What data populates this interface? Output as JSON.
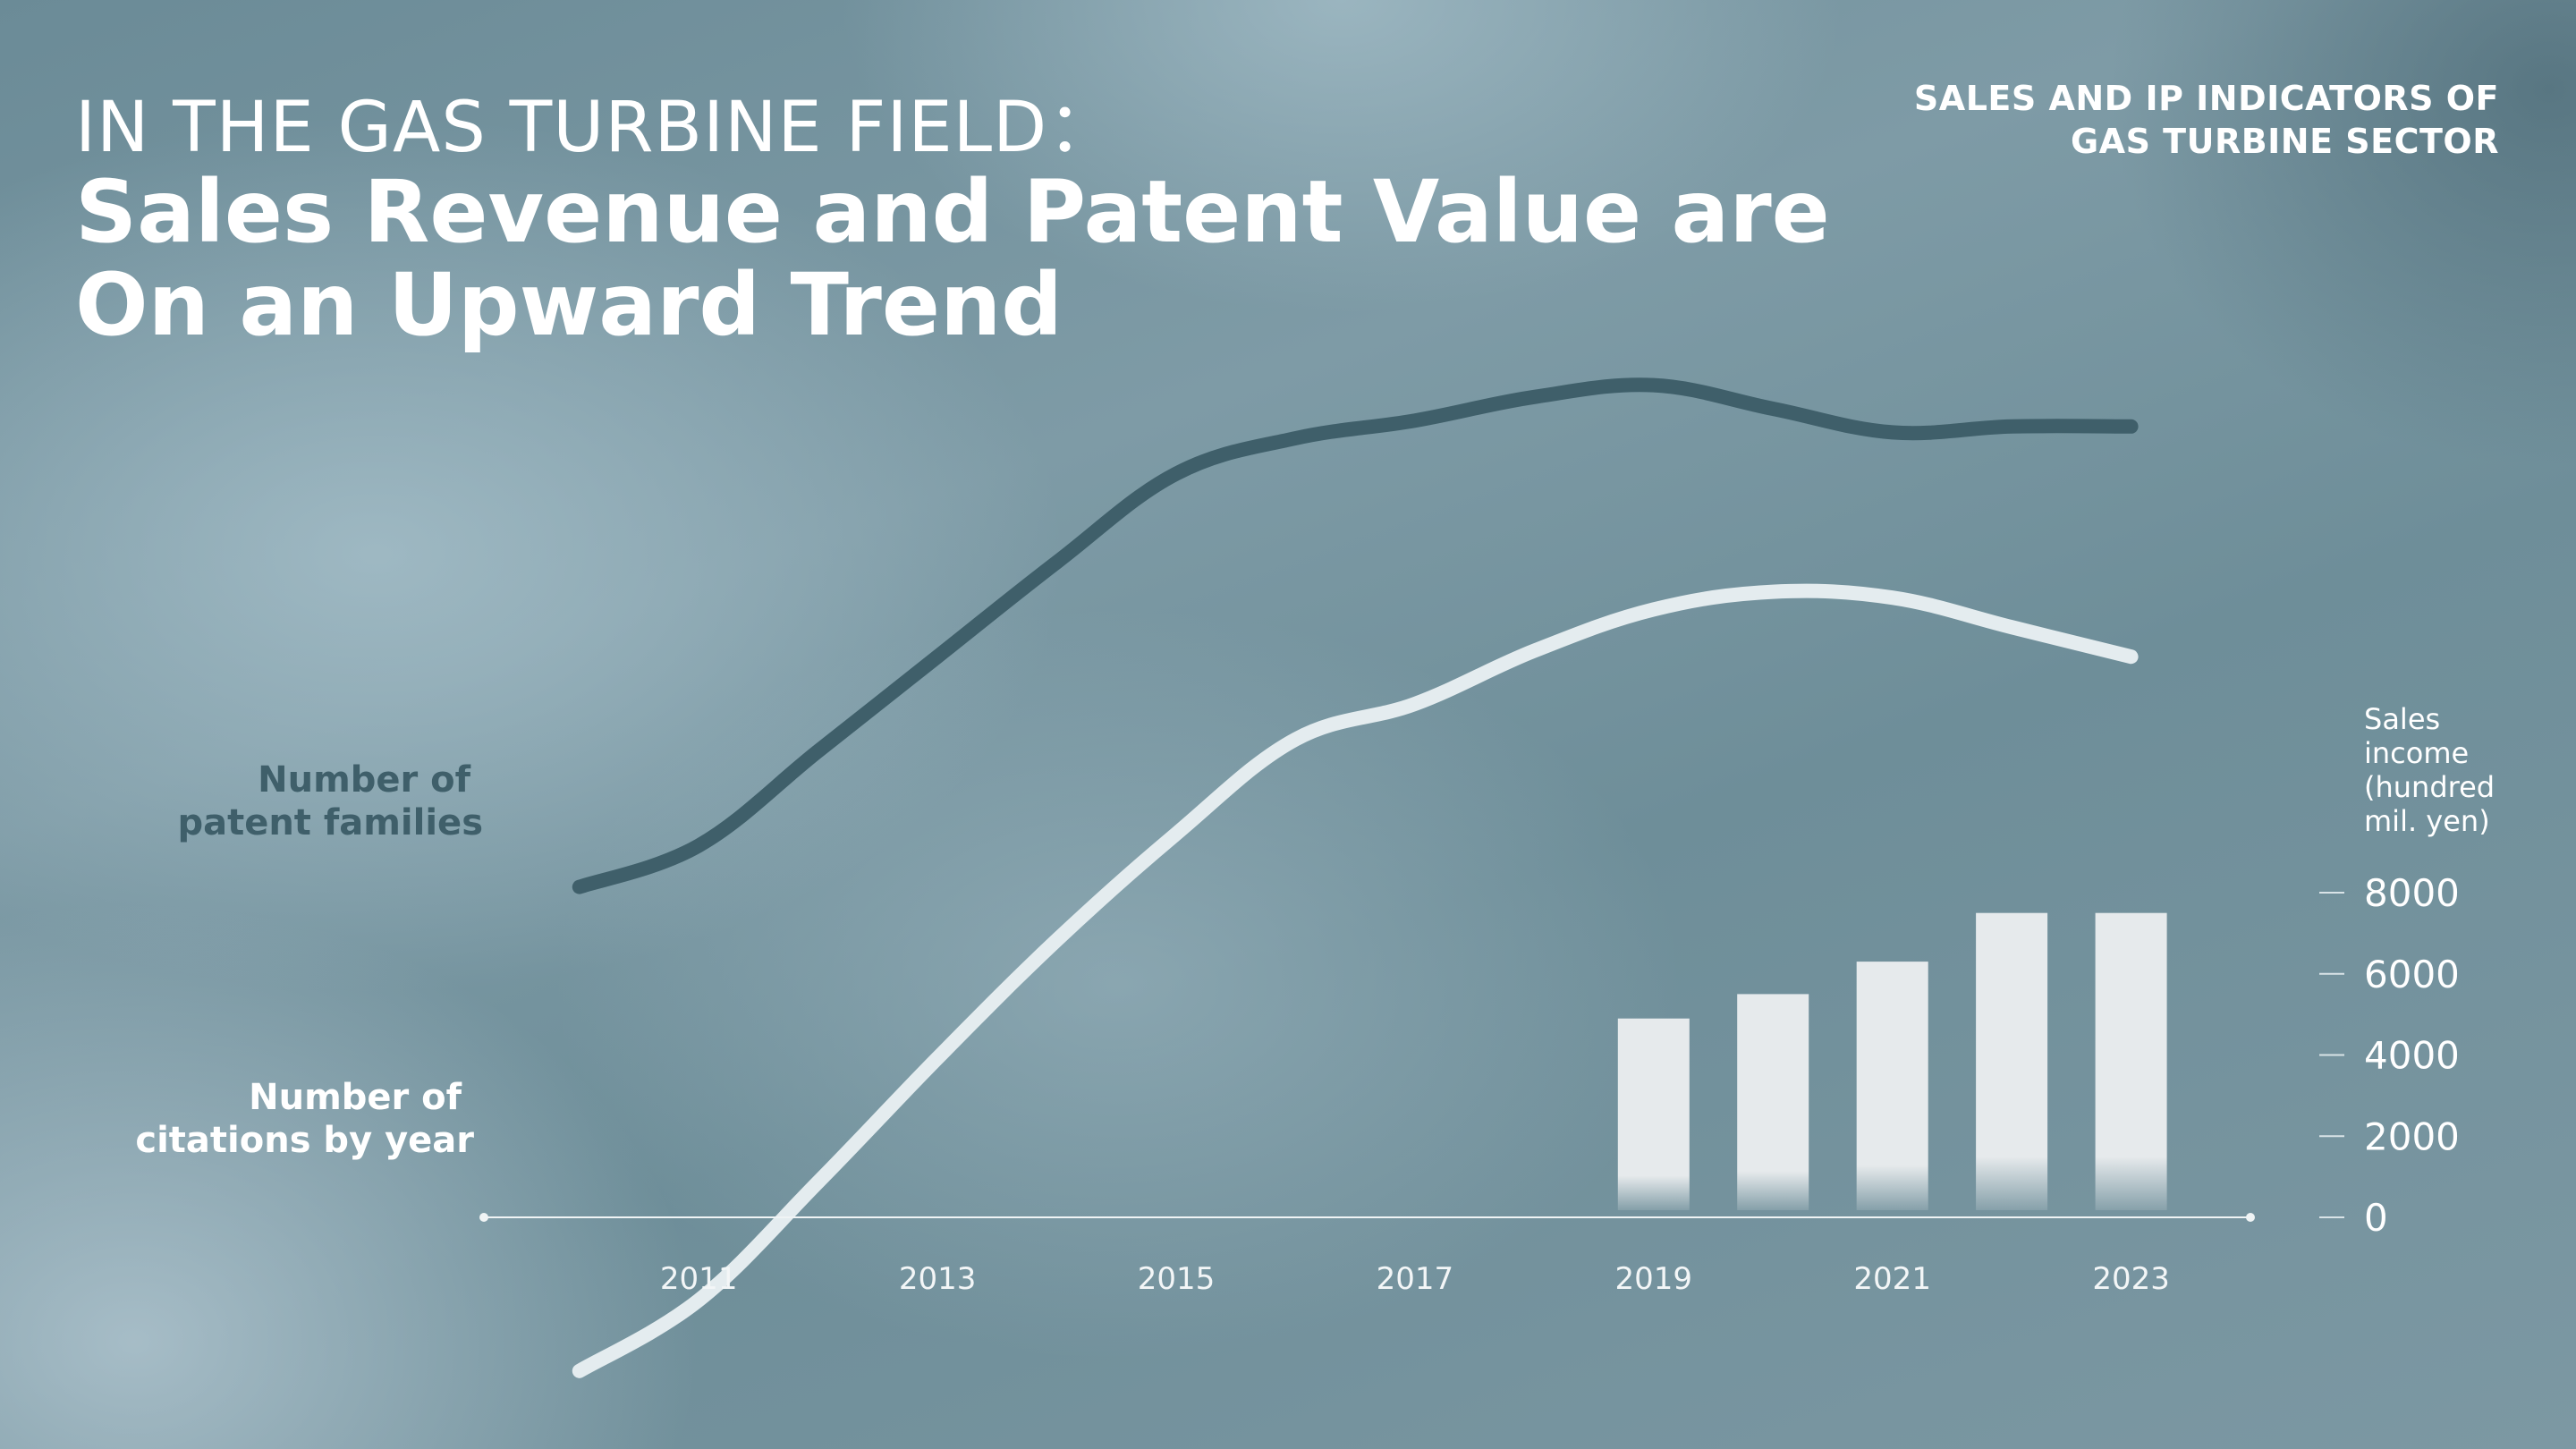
{
  "header": {
    "eyebrow": "IN THE GAS TURBINE FIELD：",
    "headline_line1": "Sales Revenue and Patent Value are",
    "headline_line2": "On an Upward Trend",
    "corner_line1": "SALES AND IP INDICATORS OF",
    "corner_line2": "GAS TURBINE SECTOR"
  },
  "colors": {
    "patent_line": "#3f5f6a",
    "citation_line": "#e4ecef",
    "bars": "#e6eaec",
    "axis": "#f0f4f5"
  },
  "chart_data": {
    "type": "line+bar",
    "title": "",
    "x": [
      2010,
      2011,
      2012,
      2013,
      2014,
      2015,
      2016,
      2017,
      2018,
      2019,
      2020,
      2021,
      2022,
      2023
    ],
    "x_tick_labels": [
      "2011",
      "2013",
      "2015",
      "2017",
      "2019",
      "2021",
      "2023"
    ],
    "x_range": [
      2009.2,
      2024.0
    ],
    "series": [
      {
        "name_line1": "Number of",
        "name_line2": "patent families",
        "kind": "line",
        "unitless_index": true,
        "values": [
          24,
          31,
          47,
          63,
          79,
          94,
          100,
          103,
          107,
          109,
          105,
          101,
          102,
          102
        ]
      },
      {
        "name_line1": "Number of",
        "name_line2": "citations by year",
        "kind": "line",
        "unitless_index": true,
        "values": [
          -58,
          -46,
          -26,
          -5,
          15,
          33,
          49,
          55,
          64,
          71,
          74,
          73,
          68,
          63
        ]
      },
      {
        "name": "Sales income",
        "kind": "bar",
        "axis": "right",
        "x": [
          2019,
          2020,
          2021,
          2022,
          2023
        ],
        "values": [
          4900,
          5500,
          6300,
          7500,
          7500
        ]
      }
    ],
    "right_axis": {
      "title_lines": [
        "Sales",
        "income",
        "(hundred",
        "mil. yen)"
      ],
      "ticks": [
        0,
        2000,
        4000,
        6000,
        8000
      ],
      "tick_labels": [
        "0",
        "2000",
        "4000",
        "6000",
        "8000"
      ],
      "range": [
        0,
        8000
      ]
    },
    "grid": false,
    "legend": "inline-left"
  }
}
